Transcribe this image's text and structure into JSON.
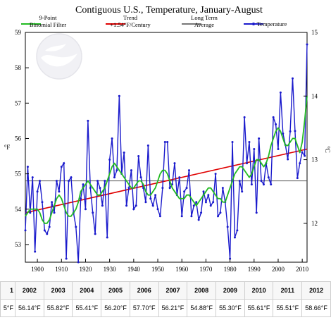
{
  "chart_data": {
    "type": "line",
    "title": "Contiguous U.S., Temperature, January-August",
    "ylabel": "°F",
    "ylabel_right": "°C",
    "xlim": [
      1895,
      2012
    ],
    "ylim": [
      52.5,
      59
    ],
    "yticks": [
      53,
      54,
      55,
      56,
      57,
      58,
      59
    ],
    "yticks_right": [
      12,
      13,
      14,
      15
    ],
    "xticks": [
      1900,
      1910,
      1920,
      1930,
      1940,
      1950,
      1960,
      1970,
      1980,
      1990,
      2000,
      2010
    ],
    "legend": {
      "placement": "top",
      "entries": [
        {
          "label_lines": [
            "9-Point",
            "Binomial Filter"
          ],
          "color": "#22bb22"
        },
        {
          "label_lines": [
            "Trend",
            "+1.54°F/Century"
          ],
          "color": "#e00000"
        },
        {
          "label_lines": [
            "Long Term",
            "Average"
          ],
          "color": "#777777"
        },
        {
          "label_lines": [
            "Temperature"
          ],
          "color": "#1a1acc"
        }
      ]
    },
    "long_term_average": 54.8,
    "trend": {
      "x": [
        1895,
        2012
      ],
      "y": [
        53.9,
        55.7
      ]
    },
    "series": [
      {
        "name": "Temperature",
        "color": "#1a1acc",
        "x": [
          1895,
          1896,
          1897,
          1898,
          1899,
          1900,
          1901,
          1902,
          1903,
          1904,
          1905,
          1906,
          1907,
          1908,
          1909,
          1910,
          1911,
          1912,
          1913,
          1914,
          1915,
          1916,
          1917,
          1918,
          1919,
          1920,
          1921,
          1922,
          1923,
          1924,
          1925,
          1926,
          1927,
          1928,
          1929,
          1930,
          1931,
          1932,
          1933,
          1934,
          1935,
          1936,
          1937,
          1938,
          1939,
          1940,
          1941,
          1942,
          1943,
          1944,
          1945,
          1946,
          1947,
          1948,
          1949,
          1950,
          1951,
          1952,
          1953,
          1954,
          1955,
          1956,
          1957,
          1958,
          1959,
          1960,
          1961,
          1962,
          1963,
          1964,
          1965,
          1966,
          1967,
          1968,
          1969,
          1970,
          1971,
          1972,
          1973,
          1974,
          1975,
          1976,
          1977,
          1978,
          1979,
          1980,
          1981,
          1982,
          1983,
          1984,
          1985,
          1986,
          1987,
          1988,
          1989,
          1990,
          1991,
          1992,
          1993,
          1994,
          1995,
          1996,
          1997,
          1998,
          1999,
          2000,
          2001,
          2002,
          2003,
          2004,
          2005,
          2006,
          2007,
          2008,
          2009,
          2010,
          2011,
          2012
        ],
        "y": [
          53.4,
          55.2,
          53.9,
          54.9,
          52.8,
          54.5,
          54.8,
          54.2,
          53.4,
          53.3,
          53.5,
          54.2,
          53.9,
          54.8,
          54.5,
          55.2,
          55.3,
          52.6,
          54.8,
          54.9,
          53.9,
          53.5,
          52.5,
          54.3,
          54.7,
          54.0,
          56.5,
          54.6,
          53.9,
          53.3,
          54.8,
          54.6,
          54.1,
          54.8,
          53.2,
          55.4,
          56.0,
          54.9,
          55.1,
          57.2,
          55.0,
          55.6,
          54.1,
          54.6,
          55.1,
          54.0,
          54.1,
          55.5,
          54.9,
          54.6,
          54.2,
          55.8,
          54.3,
          54.1,
          54.4,
          54.0,
          53.8,
          54.6,
          55.9,
          55.9,
          54.6,
          54.7,
          55.3,
          54.4,
          54.9,
          53.8,
          54.5,
          54.6,
          55.1,
          53.8,
          54.1,
          54.2,
          53.7,
          53.9,
          54.5,
          54.2,
          54.4,
          54.1,
          54.2,
          55.0,
          53.8,
          53.9,
          54.6,
          54.2,
          53.5,
          52.6,
          55.9,
          53.2,
          53.4,
          54.8,
          54.5,
          56.6,
          55.3,
          55.9,
          54.7,
          55.7,
          53.9,
          56.0,
          54.8,
          54.7,
          55.3,
          54.9,
          54.7,
          56.6,
          56.4,
          55.7,
          57.3,
          56.14,
          55.82,
          55.41,
          56.2,
          57.7,
          56.21,
          54.88,
          55.3,
          55.61,
          55.51,
          58.66
        ]
      },
      {
        "name": "9-Point Binomial Filter",
        "color": "#22bb22",
        "x": [
          1895,
          1896,
          1897,
          1898,
          1899,
          1900,
          1901,
          1902,
          1903,
          1904,
          1905,
          1906,
          1907,
          1908,
          1909,
          1910,
          1911,
          1912,
          1913,
          1914,
          1915,
          1916,
          1917,
          1918,
          1919,
          1920,
          1921,
          1922,
          1923,
          1924,
          1925,
          1926,
          1927,
          1928,
          1929,
          1930,
          1931,
          1932,
          1933,
          1934,
          1935,
          1936,
          1937,
          1938,
          1939,
          1940,
          1941,
          1942,
          1943,
          1944,
          1945,
          1946,
          1947,
          1948,
          1949,
          1950,
          1951,
          1952,
          1953,
          1954,
          1955,
          1956,
          1957,
          1958,
          1959,
          1960,
          1961,
          1962,
          1963,
          1964,
          1965,
          1966,
          1967,
          1968,
          1969,
          1970,
          1971,
          1972,
          1973,
          1974,
          1975,
          1976,
          1977,
          1978,
          1979,
          1980,
          1981,
          1982,
          1983,
          1984,
          1985,
          1986,
          1987,
          1988,
          1989,
          1990,
          1991,
          1992,
          1993,
          1994,
          1995,
          1996,
          1997,
          1998,
          1999,
          2000,
          2001,
          2002,
          2003,
          2004,
          2005,
          2006,
          2007,
          2008,
          2009,
          2010,
          2011,
          2012
        ],
        "y": [
          53.8,
          53.9,
          54.0,
          54.0,
          54.0,
          54.0,
          53.9,
          53.7,
          53.6,
          53.6,
          53.7,
          53.9,
          54.1,
          54.3,
          54.4,
          54.3,
          54.1,
          53.9,
          53.8,
          53.8,
          53.9,
          54.0,
          54.2,
          54.5,
          54.6,
          54.7,
          54.8,
          54.7,
          54.6,
          54.5,
          54.4,
          54.4,
          54.5,
          54.6,
          54.8,
          55.0,
          55.2,
          55.3,
          55.2,
          55.1,
          55.0,
          54.9,
          54.8,
          54.7,
          54.6,
          54.6,
          54.7,
          54.8,
          54.8,
          54.7,
          54.5,
          54.4,
          54.4,
          54.5,
          54.6,
          54.8,
          55.0,
          55.1,
          55.1,
          55.0,
          54.8,
          54.6,
          54.5,
          54.4,
          54.3,
          54.3,
          54.3,
          54.4,
          54.4,
          54.3,
          54.2,
          54.1,
          54.2,
          54.3,
          54.4,
          54.5,
          54.6,
          54.6,
          54.5,
          54.4,
          54.3,
          54.3,
          54.2,
          54.2,
          54.4,
          54.6,
          54.8,
          55.0,
          55.1,
          55.2,
          55.2,
          55.1,
          55.0,
          54.9,
          55.0,
          55.2,
          55.4,
          55.4,
          55.3,
          55.2,
          55.3,
          55.5,
          55.8,
          56.0,
          56.2,
          56.3,
          56.2,
          56.0,
          55.8,
          55.8,
          55.9,
          56.0,
          56.0,
          55.8,
          55.6,
          55.9,
          56.5,
          57.2
        ]
      }
    ]
  },
  "table": {
    "years": [
      "1",
      "2002",
      "2003",
      "2004",
      "2005",
      "2006",
      "2007",
      "2008",
      "2009",
      "2010",
      "2011",
      "2012"
    ],
    "values": [
      "5°F",
      "56.14°F",
      "55.82°F",
      "55.41°F",
      "56.20°F",
      "57.70°F",
      "56.21°F",
      "54.88°F",
      "55.30°F",
      "55.61°F",
      "55.51°F",
      "58.66°F"
    ]
  },
  "logo": {
    "icon": "noaa-logo-watermark"
  }
}
